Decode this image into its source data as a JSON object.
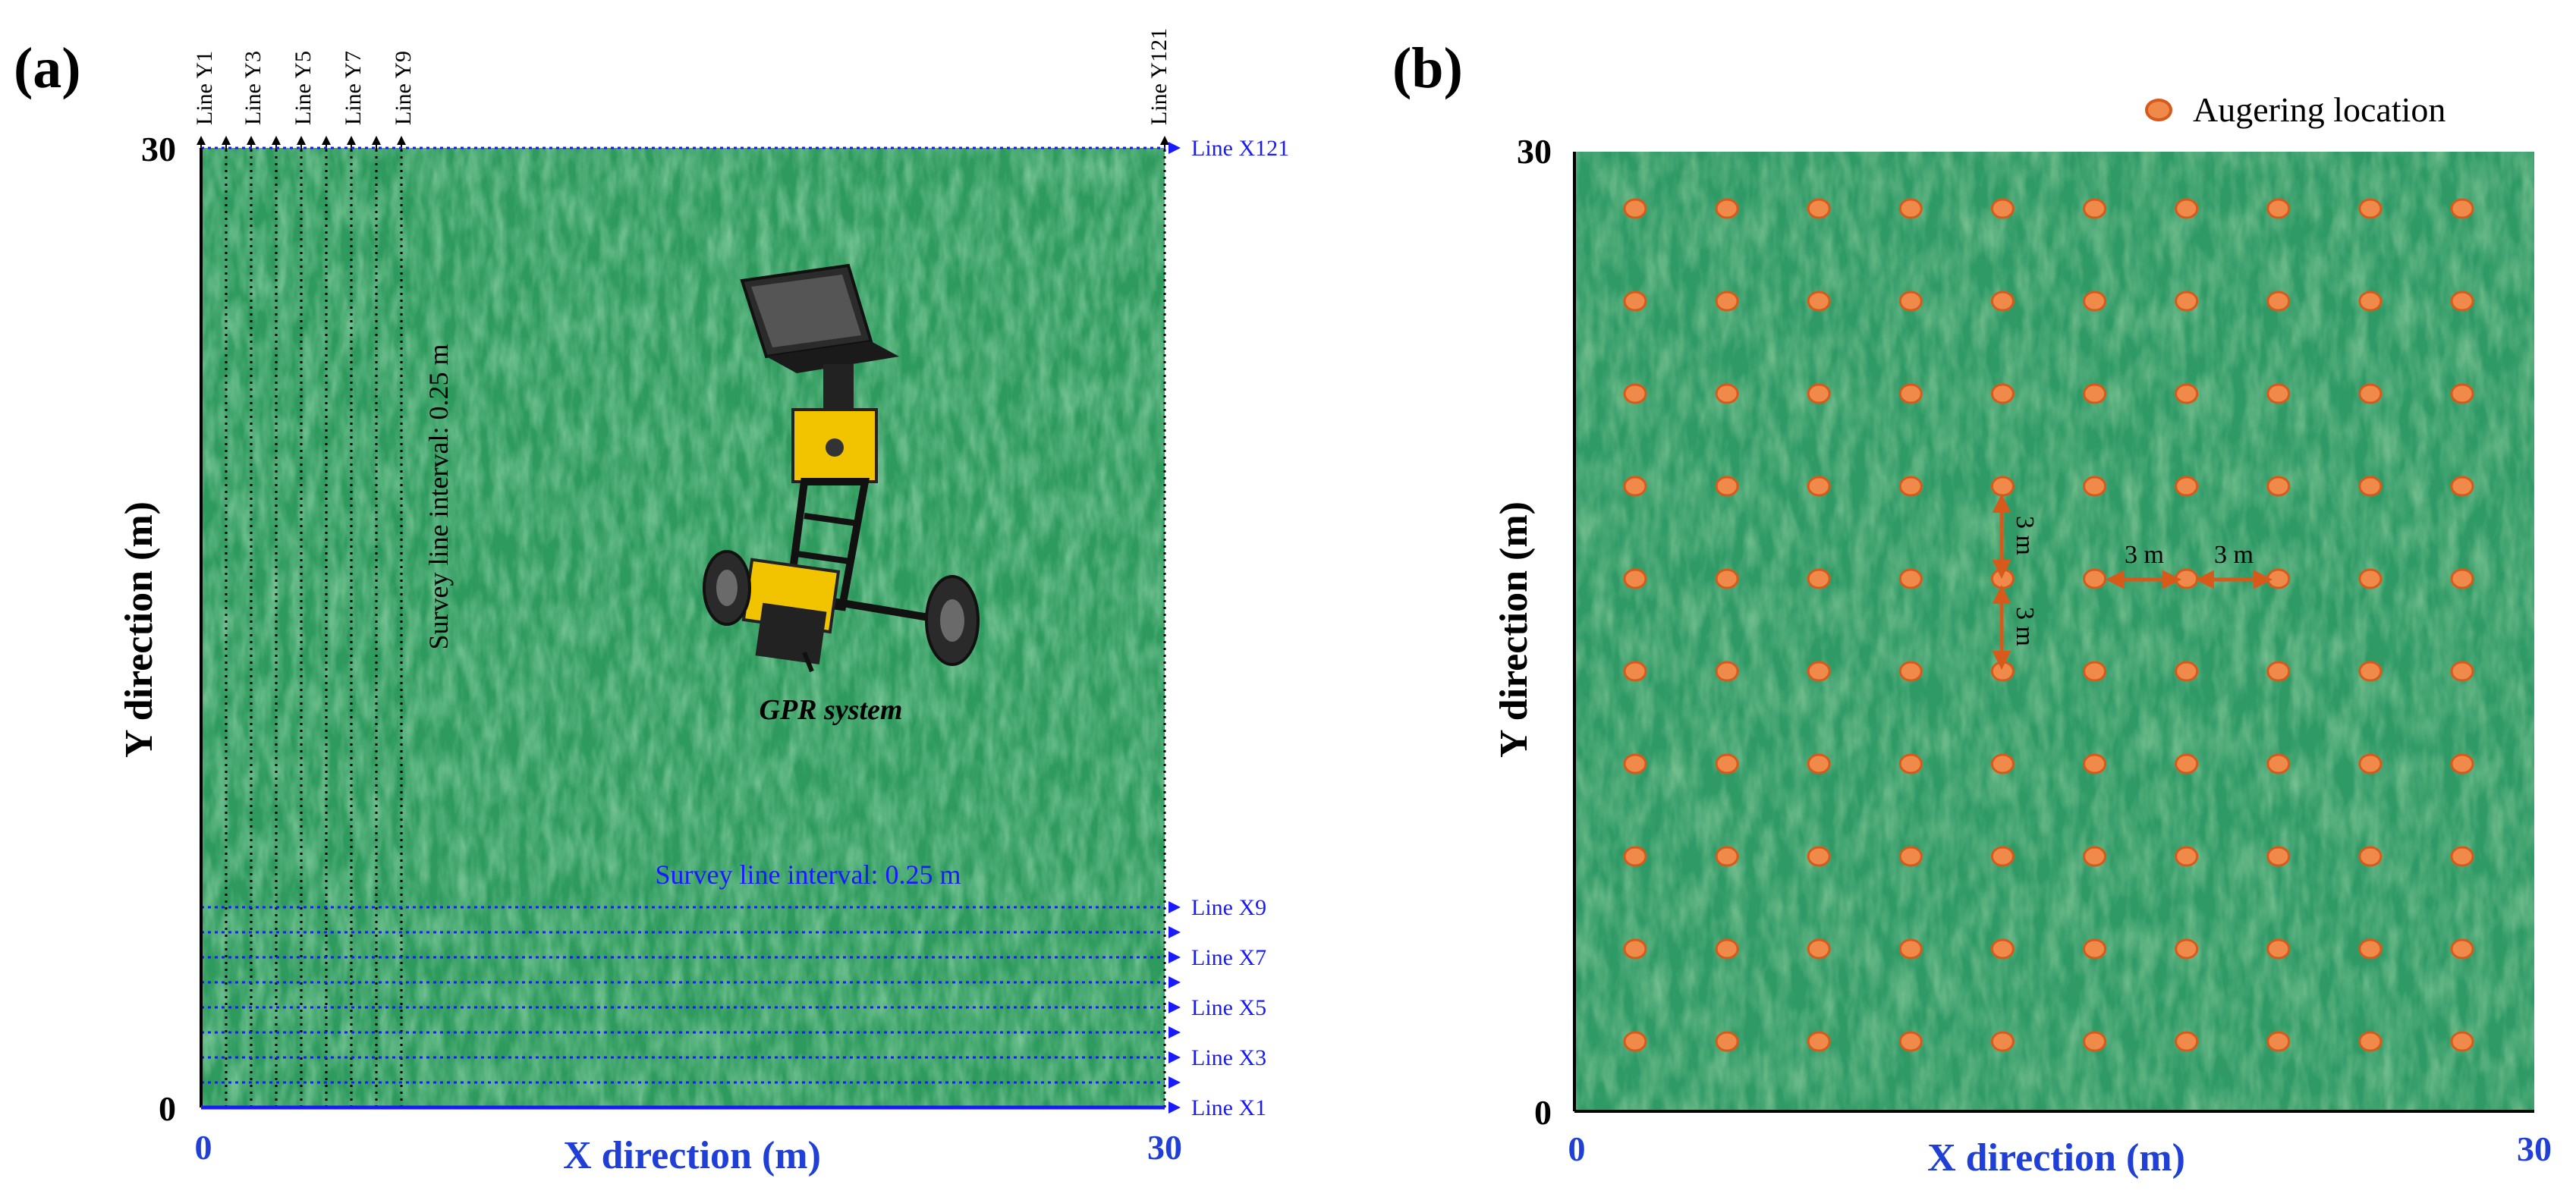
{
  "panel_a": {
    "label": "(a)",
    "x_axis_title": "X direction (m)",
    "y_axis_title": "Y direction (m)",
    "x_ticks": [
      "0",
      "30"
    ],
    "y_ticks": [
      "0",
      "30"
    ],
    "y_lines": [
      "Line Y1",
      "Line Y3",
      "Line Y5",
      "Line Y7",
      "Line Y9",
      "Line Y121"
    ],
    "x_lines": [
      "Line X1",
      "Line X3",
      "Line X5",
      "Line X7",
      "Line X9",
      "Line X121"
    ],
    "y_interval_text": "Survey line interval: 0.25 m",
    "x_interval_text": "Survey line interval: 0.25 m",
    "equipment_label": "GPR system"
  },
  "panel_b": {
    "label": "(b)",
    "x_axis_title": "X direction (m)",
    "y_axis_title": "Y direction (m)",
    "x_ticks": [
      "0",
      "30"
    ],
    "y_ticks": [
      "0",
      "30"
    ],
    "legend_label": "Augering location",
    "spacing_labels": [
      "3 m",
      "3 m",
      "3 m",
      "3 m"
    ],
    "grid_columns": 10,
    "grid_rows": 10
  },
  "colors": {
    "grass": "#2f9a62",
    "grass_light": "#7fbf72",
    "auger": "#f08a4b",
    "auger_edge": "#d85a1a",
    "survey_blue": "#1a1aff",
    "axis_blue": "#1f3fd6"
  }
}
